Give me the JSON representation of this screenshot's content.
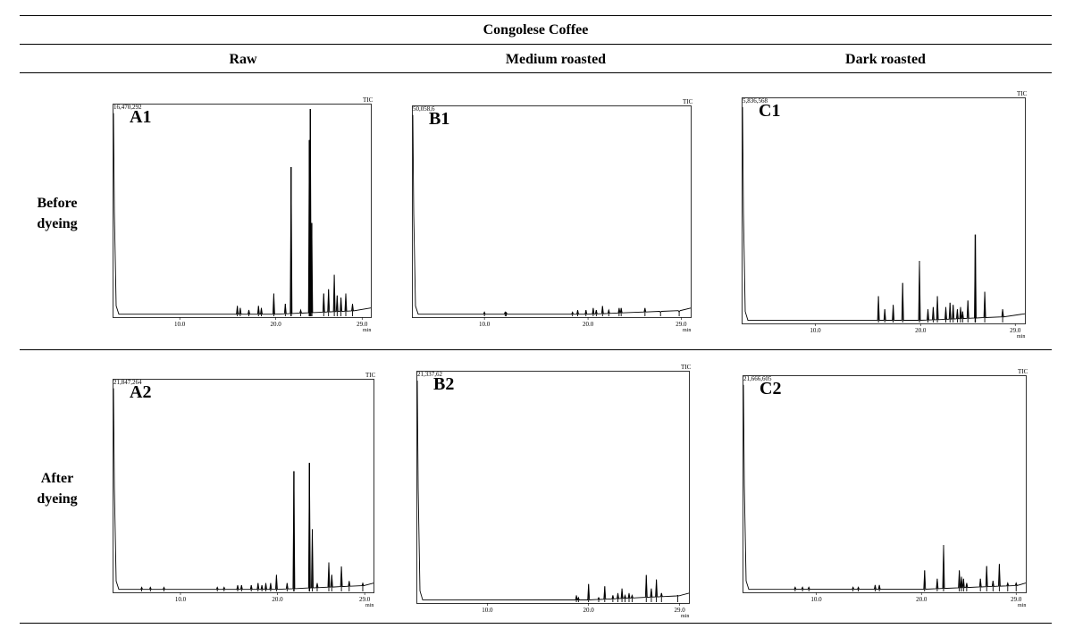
{
  "table": {
    "title": "Congolese Coffee",
    "columns": [
      "Raw",
      "Medium roasted",
      "Dark roasted"
    ],
    "rows": [
      {
        "label_1": "Before",
        "label_2": "dyeing"
      },
      {
        "label_1": "After",
        "label_2": "dyeing"
      }
    ]
  },
  "chart_data": [
    {
      "type": "line",
      "panel_label": "A1",
      "signal_label": "TIC",
      "max_intensity": "16,470,292",
      "xunit": "min",
      "x_tick_labels": [
        "10.0",
        "20.0",
        "29.0"
      ],
      "xlim": [
        3,
        30
      ],
      "ylim": [
        0,
        1
      ],
      "series": [
        {
          "peaks": [
            [
              16.0,
              0.05
            ],
            [
              16.3,
              0.04
            ],
            [
              17.2,
              0.03
            ],
            [
              18.2,
              0.05
            ],
            [
              18.5,
              0.04
            ],
            [
              19.8,
              0.11
            ],
            [
              21.0,
              0.06
            ],
            [
              21.6,
              0.72
            ],
            [
              22.6,
              0.03
            ],
            [
              23.5,
              0.85
            ],
            [
              23.6,
              1.0
            ],
            [
              23.75,
              0.45
            ],
            [
              25.0,
              0.11
            ],
            [
              25.5,
              0.13
            ],
            [
              26.1,
              0.2
            ],
            [
              26.4,
              0.1
            ],
            [
              26.8,
              0.09
            ],
            [
              27.3,
              0.11
            ],
            [
              28.0,
              0.06
            ]
          ]
        }
      ]
    },
    {
      "type": "line",
      "panel_label": "B1",
      "signal_label": "TIC",
      "max_intensity": "50,058,6",
      "xunit": "min",
      "x_tick_labels": [
        "10.0",
        "20.0",
        "29.0"
      ],
      "xlim": [
        3,
        30
      ],
      "ylim": [
        0,
        1
      ],
      "series": [
        {
          "peaks": [
            [
              10.0,
              0.02
            ],
            [
              12.0,
              0.02
            ],
            [
              12.1,
              0.02
            ],
            [
              18.5,
              0.02
            ],
            [
              19.0,
              0.03
            ],
            [
              19.8,
              0.03
            ],
            [
              20.5,
              0.04
            ],
            [
              20.8,
              0.03
            ],
            [
              21.4,
              0.05
            ],
            [
              22.0,
              0.03
            ],
            [
              23.0,
              0.04
            ],
            [
              23.2,
              0.04
            ],
            [
              25.5,
              0.04
            ],
            [
              27.0,
              0.02
            ],
            [
              28.8,
              0.02
            ]
          ]
        }
      ]
    },
    {
      "type": "line",
      "panel_label": "C1",
      "signal_label": "TIC",
      "max_intensity": "5,836,568",
      "xunit": "min",
      "x_tick_labels": [
        "10.0",
        "20.0",
        "29.0"
      ],
      "xlim": [
        3,
        30
      ],
      "ylim": [
        0,
        1
      ],
      "series": [
        {
          "peaks": [
            [
              16.0,
              0.12
            ],
            [
              16.6,
              0.06
            ],
            [
              17.4,
              0.08
            ],
            [
              18.3,
              0.18
            ],
            [
              19.9,
              0.28
            ],
            [
              20.7,
              0.06
            ],
            [
              21.2,
              0.07
            ],
            [
              21.6,
              0.12
            ],
            [
              22.4,
              0.07
            ],
            [
              22.8,
              0.09
            ],
            [
              23.1,
              0.08
            ],
            [
              23.5,
              0.06
            ],
            [
              23.8,
              0.07
            ],
            [
              24.0,
              0.05
            ],
            [
              24.5,
              0.1
            ],
            [
              25.2,
              0.4
            ],
            [
              26.1,
              0.14
            ],
            [
              27.8,
              0.06
            ]
          ]
        }
      ]
    },
    {
      "type": "line",
      "panel_label": "A2",
      "signal_label": "TIC",
      "max_intensity": "21,847,264",
      "xunit": "min",
      "x_tick_labels": [
        "10.0",
        "20.0",
        "29.0"
      ],
      "xlim": [
        3,
        30
      ],
      "ylim": [
        0,
        1
      ],
      "series": [
        {
          "peaks": [
            [
              6.0,
              0.02
            ],
            [
              6.9,
              0.02
            ],
            [
              8.3,
              0.02
            ],
            [
              13.8,
              0.02
            ],
            [
              14.5,
              0.02
            ],
            [
              15.9,
              0.03
            ],
            [
              16.3,
              0.03
            ],
            [
              17.3,
              0.03
            ],
            [
              18.0,
              0.04
            ],
            [
              18.4,
              0.03
            ],
            [
              18.8,
              0.04
            ],
            [
              19.3,
              0.04
            ],
            [
              19.9,
              0.08
            ],
            [
              21.0,
              0.04
            ],
            [
              21.7,
              0.58
            ],
            [
              23.3,
              0.62
            ],
            [
              23.6,
              0.3
            ],
            [
              24.1,
              0.04
            ],
            [
              25.3,
              0.14
            ],
            [
              25.6,
              0.08
            ],
            [
              26.6,
              0.12
            ],
            [
              27.4,
              0.05
            ],
            [
              28.8,
              0.04
            ]
          ]
        }
      ]
    },
    {
      "type": "line",
      "panel_label": "B2",
      "signal_label": "TIC",
      "max_intensity": "21,337,62",
      "xunit": "min",
      "x_tick_labels": [
        "10.0",
        "20.0",
        "29.0"
      ],
      "xlim": [
        3,
        30
      ],
      "ylim": [
        0,
        1
      ],
      "series": [
        {
          "peaks": [
            [
              18.8,
              0.03
            ],
            [
              19.0,
              0.02
            ],
            [
              20.0,
              0.08
            ],
            [
              21.0,
              0.02
            ],
            [
              21.6,
              0.07
            ],
            [
              22.4,
              0.03
            ],
            [
              22.9,
              0.04
            ],
            [
              23.3,
              0.06
            ],
            [
              23.6,
              0.03
            ],
            [
              24.0,
              0.04
            ],
            [
              24.3,
              0.03
            ],
            [
              25.7,
              0.12
            ],
            [
              26.2,
              0.06
            ],
            [
              26.7,
              0.1
            ],
            [
              27.2,
              0.04
            ],
            [
              28.8,
              0.03
            ]
          ]
        }
      ]
    },
    {
      "type": "line",
      "panel_label": "C2",
      "signal_label": "TIC",
      "max_intensity": "21,666,605",
      "xunit": "min",
      "x_tick_labels": [
        "10.0",
        "20.0",
        "29.0"
      ],
      "xlim": [
        3,
        30
      ],
      "ylim": [
        0,
        1
      ],
      "series": [
        {
          "peaks": [
            [
              8.0,
              0.02
            ],
            [
              8.7,
              0.02
            ],
            [
              9.3,
              0.02
            ],
            [
              13.5,
              0.02
            ],
            [
              14.0,
              0.02
            ],
            [
              15.6,
              0.03
            ],
            [
              16.0,
              0.03
            ],
            [
              20.3,
              0.1
            ],
            [
              21.5,
              0.06
            ],
            [
              22.1,
              0.22
            ],
            [
              23.6,
              0.1
            ],
            [
              23.8,
              0.07
            ],
            [
              24.0,
              0.06
            ],
            [
              24.3,
              0.04
            ],
            [
              25.6,
              0.06
            ],
            [
              26.2,
              0.12
            ],
            [
              26.8,
              0.05
            ],
            [
              27.4,
              0.13
            ],
            [
              28.2,
              0.04
            ],
            [
              29.0,
              0.04
            ]
          ]
        }
      ]
    }
  ]
}
